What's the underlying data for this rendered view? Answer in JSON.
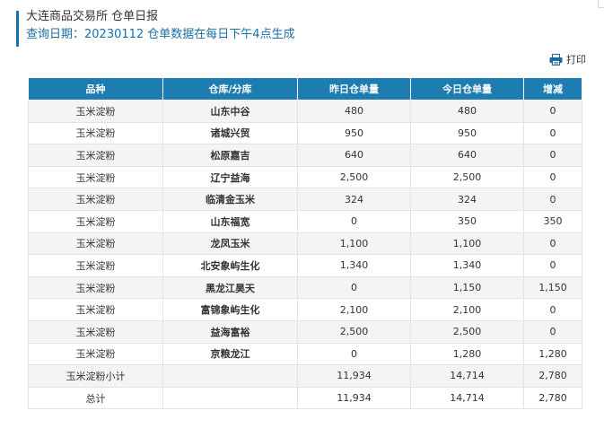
{
  "header": {
    "title": "大连商品交易所 仓单日报",
    "subtitle": "查询日期：20230112 仓单数据在每日下午4点生成"
  },
  "toolbar": {
    "print_label": "打印",
    "print_icon": "printer-icon"
  },
  "table": {
    "columns": [
      "品种",
      "仓库/分库",
      "昨日仓单量",
      "今日仓单量",
      "增减"
    ],
    "rows": [
      {
        "product": "玉米淀粉",
        "warehouse": "山东中谷",
        "yesterday": "480",
        "today": "480",
        "change": "0"
      },
      {
        "product": "玉米淀粉",
        "warehouse": "诸城兴贸",
        "yesterday": "950",
        "today": "950",
        "change": "0"
      },
      {
        "product": "玉米淀粉",
        "warehouse": "松原嘉吉",
        "yesterday": "640",
        "today": "640",
        "change": "0"
      },
      {
        "product": "玉米淀粉",
        "warehouse": "辽宁益海",
        "yesterday": "2,500",
        "today": "2,500",
        "change": "0"
      },
      {
        "product": "玉米淀粉",
        "warehouse": "临清金玉米",
        "yesterday": "324",
        "today": "324",
        "change": "0"
      },
      {
        "product": "玉米淀粉",
        "warehouse": "山东福宽",
        "yesterday": "0",
        "today": "350",
        "change": "350"
      },
      {
        "product": "玉米淀粉",
        "warehouse": "龙凤玉米",
        "yesterday": "1,100",
        "today": "1,100",
        "change": "0"
      },
      {
        "product": "玉米淀粉",
        "warehouse": "北安象屿生化",
        "yesterday": "1,340",
        "today": "1,340",
        "change": "0"
      },
      {
        "product": "玉米淀粉",
        "warehouse": "黑龙江昊天",
        "yesterday": "0",
        "today": "1,150",
        "change": "1,150"
      },
      {
        "product": "玉米淀粉",
        "warehouse": "富锦象屿生化",
        "yesterday": "2,100",
        "today": "2,100",
        "change": "0"
      },
      {
        "product": "玉米淀粉",
        "warehouse": "益海富裕",
        "yesterday": "2,500",
        "today": "2,500",
        "change": "0"
      },
      {
        "product": "玉米淀粉",
        "warehouse": "京粮龙江",
        "yesterday": "0",
        "today": "1,280",
        "change": "1,280"
      }
    ],
    "subtotal": {
      "label": "玉米淀粉小计",
      "yesterday": "11,934",
      "today": "14,714",
      "change": "2,780"
    },
    "total": {
      "label": "总计",
      "yesterday": "11,934",
      "today": "14,714",
      "change": "2,780"
    }
  },
  "colors": {
    "header_bg": "#1e7db0",
    "accent": "#1a6fa8",
    "row_alt": "#f4f4f4"
  }
}
